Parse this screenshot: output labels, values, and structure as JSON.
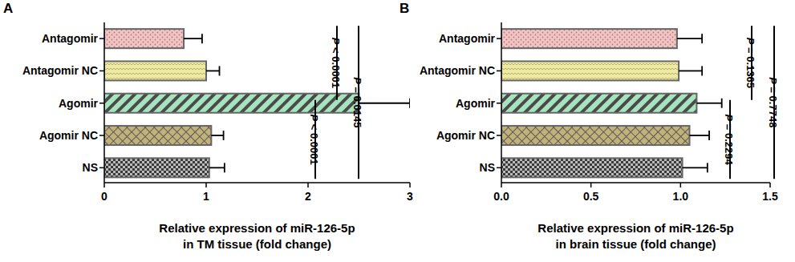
{
  "chart_data": [
    {
      "type": "bar",
      "title": "A",
      "orientation": "horizontal",
      "categories": [
        "Antagomir",
        "Antagomir NC",
        "Agomir",
        "Agomir NC",
        "NS"
      ],
      "values": [
        0.78,
        1.0,
        2.5,
        1.05,
        1.03
      ],
      "errors": [
        0.18,
        0.13,
        0.5,
        0.12,
        0.15
      ],
      "colors": [
        "#f2c4c4",
        "#eeeaa6",
        "#a6e3bf",
        "#c2b27a",
        "#3a3a3a"
      ],
      "xlabel": [
        "Relative expression of miR-126-5p",
        "in TM tissue (fold change)"
      ],
      "xlim": [
        0,
        3
      ],
      "xticks": [
        0,
        1,
        2,
        3
      ],
      "comparisons": [
        {
          "from": "Antagomir",
          "to": "Agomir",
          "label": "P < 0.0001"
        },
        {
          "from": "Agomir",
          "to": "NS",
          "label": "P < 0.0001"
        },
        {
          "from": "Antagomir",
          "to": "NS",
          "label": "P = 0.0145"
        }
      ]
    },
    {
      "type": "bar",
      "title": "B",
      "orientation": "horizontal",
      "categories": [
        "Antagomir",
        "Antagomir NC",
        "Agomir",
        "Agomir NC",
        "NS"
      ],
      "values": [
        0.98,
        0.99,
        1.09,
        1.05,
        1.01
      ],
      "errors": [
        0.14,
        0.13,
        0.14,
        0.11,
        0.14
      ],
      "colors": [
        "#f2c4c4",
        "#eeeaa6",
        "#a6e3bf",
        "#c2b27a",
        "#3a3a3a"
      ],
      "xlabel": [
        "Relative expression of miR-126-5p",
        "in brain tissue (fold change)"
      ],
      "xlim": [
        0,
        1.5
      ],
      "xticks": [
        {
          "value": 0,
          "label": "0.0"
        },
        {
          "value": 0.5,
          "label": "0.5"
        },
        {
          "value": 1,
          "label": "1.0"
        },
        1.5
      ],
      "comparisons": [
        {
          "from": "Antagomir",
          "to": "Agomir",
          "label": "P = 0.1365"
        },
        {
          "from": "Agomir",
          "to": "NS",
          "label": "P = 0.2294"
        },
        {
          "from": "Antagomir",
          "to": "NS",
          "label": "P = 0.7748"
        }
      ]
    }
  ]
}
